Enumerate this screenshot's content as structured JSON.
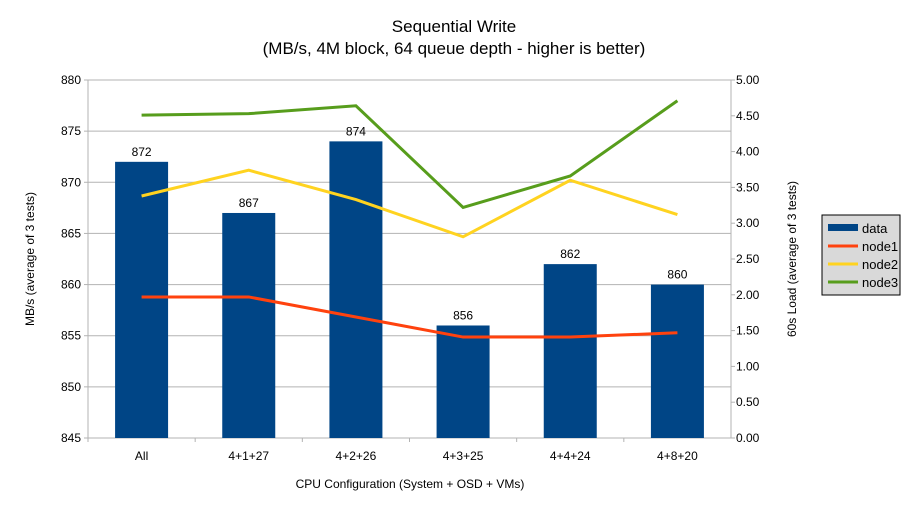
{
  "chart_data": {
    "type": "bar+line",
    "title": "Sequential Write",
    "subtitle": "(MB/s, 4M block, 64 queue depth - higher is better)",
    "xlabel": "CPU Configuration (System + OSD + VMs)",
    "ylabel": "MB/s (average of 3 tests)",
    "y2label": "60s Load (average of 3 tests)",
    "categories": [
      "All",
      "4+1+27",
      "4+2+26",
      "4+3+25",
      "4+4+24",
      "4+8+20"
    ],
    "ylim": [
      845,
      880
    ],
    "yticks": [
      "845",
      "850",
      "855",
      "860",
      "865",
      "870",
      "875",
      "880"
    ],
    "y2lim": [
      0,
      5
    ],
    "y2ticks": [
      "0.00",
      "0.50",
      "1.00",
      "1.50",
      "2.00",
      "2.50",
      "3.00",
      "3.50",
      "4.00",
      "4.50",
      "5.00"
    ],
    "grid": true,
    "legend_position": "right",
    "bars": {
      "name": "data",
      "color": "#004586",
      "values": [
        872,
        867,
        874,
        856,
        862,
        860
      ],
      "labels": [
        "872",
        "867",
        "874",
        "856",
        "862",
        "860"
      ]
    },
    "series": [
      {
        "name": "node1",
        "color": "#ff420e",
        "axis": "right",
        "values": [
          1.97,
          1.97,
          1.69,
          1.41,
          1.41,
          1.47
        ]
      },
      {
        "name": "node2",
        "color": "#ffd320",
        "axis": "right",
        "values": [
          3.38,
          3.74,
          3.33,
          2.81,
          3.6,
          3.12
        ]
      },
      {
        "name": "node3",
        "color": "#579d1c",
        "axis": "right",
        "values": [
          4.51,
          4.53,
          4.64,
          3.22,
          3.66,
          4.71
        ]
      }
    ]
  }
}
